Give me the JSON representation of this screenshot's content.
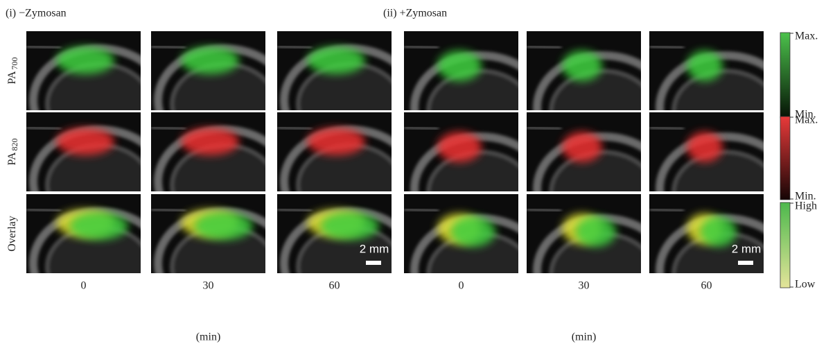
{
  "panels": [
    {
      "title": "(i) −Zymosan",
      "times": [
        "0",
        "30",
        "60"
      ],
      "unit_label": "(min)",
      "scale_bar": "2 mm"
    },
    {
      "title": "(ii) +Zymosan",
      "times": [
        "0",
        "30",
        "60"
      ],
      "unit_label": "(min)",
      "scale_bar": "2 mm"
    }
  ],
  "row_labels": [
    {
      "main": "PA",
      "sub": "700"
    },
    {
      "main": "PA",
      "sub": "820"
    },
    {
      "main": "Overlay"
    }
  ],
  "colorbars": [
    {
      "top": "Max.",
      "bottom": "Min."
    },
    {
      "top": "Max.",
      "bottom": "Min."
    },
    {
      "top": "High",
      "bottom": "Low"
    }
  ]
}
